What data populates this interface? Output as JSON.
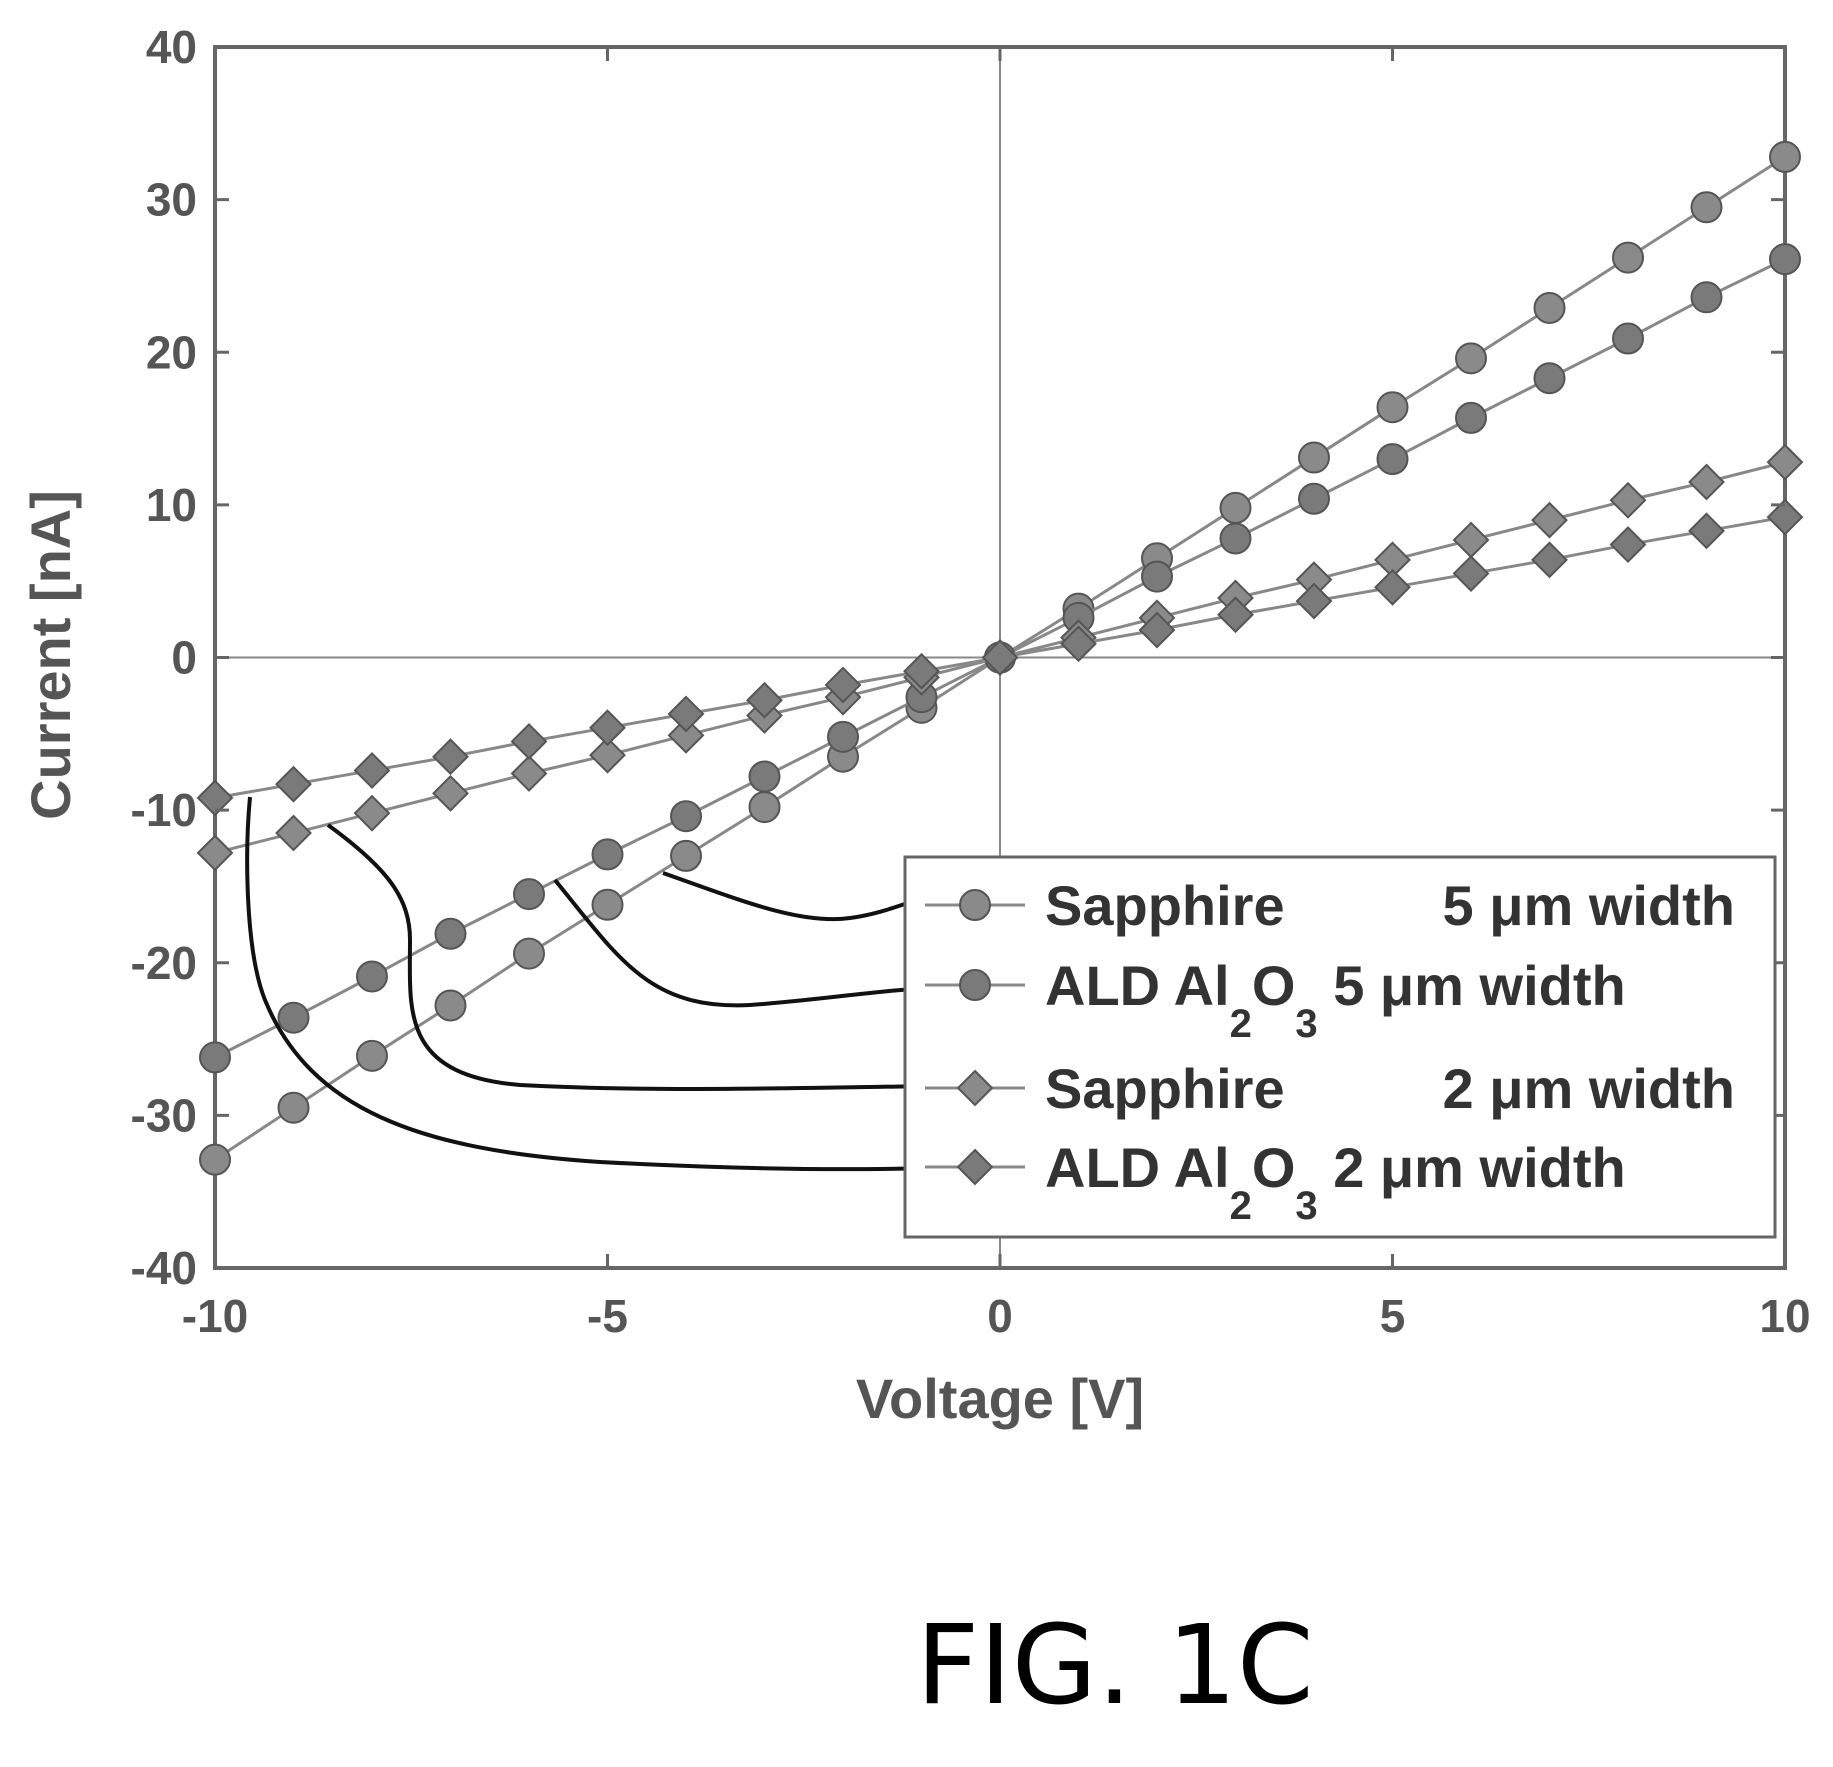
{
  "figure_label": "FIG. 1C",
  "chart_data": {
    "type": "line",
    "xlabel": "Voltage   [V]",
    "ylabel": "Current   [nA]",
    "xlim": [
      -10,
      10
    ],
    "ylim": [
      -40,
      40
    ],
    "xticks": [
      -10,
      -5,
      0,
      5,
      10
    ],
    "yticks": [
      40,
      30,
      20,
      10,
      0,
      -10,
      -20,
      -30,
      -40
    ],
    "grid": "zero lines only",
    "legend_position": "lower-right",
    "series": [
      {
        "name": "Sapphire",
        "name_sub": "",
        "name_tail": "",
        "width": "5 μm width",
        "marker": "circle",
        "color": "#8a8a8a",
        "x": [
          -10,
          -9,
          -8,
          -7,
          -6,
          -5,
          -4,
          -3,
          -2,
          -1,
          0,
          1,
          2,
          3,
          4,
          5,
          6,
          7,
          8,
          9,
          10
        ],
        "y": [
          -32.9,
          -29.5,
          -26.1,
          -22.8,
          -19.4,
          -16.2,
          -13.0,
          -9.8,
          -6.5,
          -3.3,
          0,
          3.2,
          6.5,
          9.8,
          13.1,
          16.4,
          19.6,
          22.9,
          26.2,
          29.5,
          32.8
        ]
      },
      {
        "name": "ALD Al",
        "name_sub": "2",
        "name_tail": "O",
        "name_sub2": "3",
        "width": "5 μm width",
        "marker": "circle",
        "color": "#7a7a7a",
        "x": [
          -10,
          -9,
          -8,
          -7,
          -6,
          -5,
          -4,
          -3,
          -2,
          -1,
          0,
          1,
          2,
          3,
          4,
          5,
          6,
          7,
          8,
          9,
          10
        ],
        "y": [
          -26.2,
          -23.6,
          -20.9,
          -18.1,
          -15.5,
          -12.9,
          -10.4,
          -7.8,
          -5.2,
          -2.6,
          0,
          2.6,
          5.3,
          7.8,
          10.4,
          13.0,
          15.7,
          18.3,
          20.9,
          23.6,
          26.1
        ]
      },
      {
        "name": "Sapphire",
        "name_sub": "",
        "name_tail": "",
        "width": "2 μm width",
        "marker": "diamond",
        "color": "#8a8a8a",
        "x": [
          -10,
          -9,
          -8,
          -7,
          -6,
          -5,
          -4,
          -3,
          -2,
          -1,
          0,
          1,
          2,
          3,
          4,
          5,
          6,
          7,
          8,
          9,
          10
        ],
        "y": [
          -12.8,
          -11.5,
          -10.2,
          -8.9,
          -7.6,
          -6.4,
          -5.1,
          -3.8,
          -2.6,
          -1.3,
          0,
          1.3,
          2.6,
          3.9,
          5.1,
          6.4,
          7.7,
          9.0,
          10.3,
          11.5,
          12.8
        ]
      },
      {
        "name": "ALD Al",
        "name_sub": "2",
        "name_tail": "O",
        "name_sub2": "3",
        "width": "2 μm width",
        "marker": "diamond",
        "color": "#7a7a7a",
        "x": [
          -10,
          -9,
          -8,
          -7,
          -6,
          -5,
          -4,
          -3,
          -2,
          -1,
          0,
          1,
          2,
          3,
          4,
          5,
          6,
          7,
          8,
          9,
          10
        ],
        "y": [
          -9.2,
          -8.3,
          -7.4,
          -6.5,
          -5.5,
          -4.6,
          -3.7,
          -2.8,
          -1.8,
          -0.9,
          0,
          0.9,
          1.8,
          2.8,
          3.7,
          4.6,
          5.5,
          6.4,
          7.4,
          8.3,
          9.2
        ]
      }
    ]
  }
}
